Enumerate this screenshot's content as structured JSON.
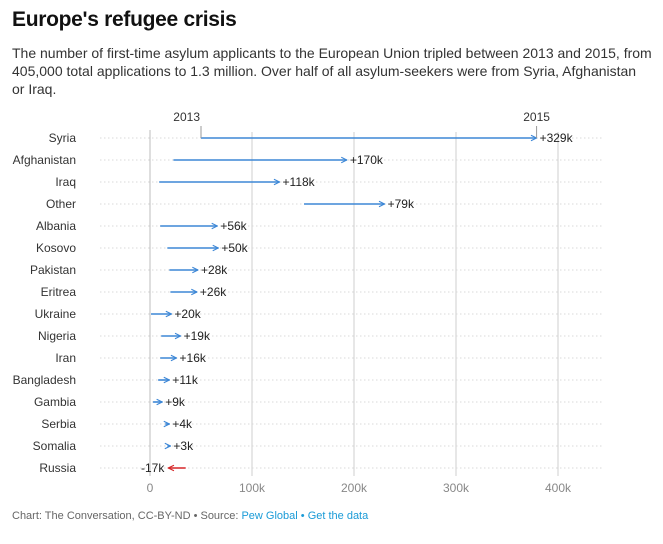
{
  "title": "Europe's refugee crisis",
  "subtitle": "The number of first-time asylum applicants to the European Union tripled between 2013 and 2015, from 405,000 total applications to 1.3 million. Over half of all asylum-seekers were from Syria, Afghanistan or Iraq.",
  "footer": {
    "credit": "Chart: The Conversation, CC-BY-ND • Source: ",
    "source_link": "Pew Global",
    "separator": " • ",
    "data_link": "Get the data"
  },
  "colors": {
    "increase": "#3d87d6",
    "decrease": "#d62728",
    "grid": "#cfcfcf",
    "axis_text": "#888888"
  },
  "chart_data": {
    "type": "arrow-range",
    "title": "Europe's refugee crisis",
    "start_label": "2013",
    "end_label": "2015",
    "xlim": [
      0,
      450000
    ],
    "xticks": [
      0,
      100000,
      200000,
      300000,
      400000
    ],
    "xtick_labels": [
      "0",
      "100k",
      "200k",
      "300k",
      "400k"
    ],
    "series": [
      {
        "country": "Syria",
        "v2013": 50000,
        "v2015": 379000,
        "label": "+329k"
      },
      {
        "country": "Afghanistan",
        "v2013": 23000,
        "v2015": 193000,
        "label": "+170k"
      },
      {
        "country": "Iraq",
        "v2013": 9000,
        "v2015": 127000,
        "label": "+118k"
      },
      {
        "country": "Other",
        "v2013": 151000,
        "v2015": 230000,
        "label": "+79k"
      },
      {
        "country": "Albania",
        "v2013": 10000,
        "v2015": 66000,
        "label": "+56k"
      },
      {
        "country": "Kosovo",
        "v2013": 17000,
        "v2015": 67000,
        "label": "+50k"
      },
      {
        "country": "Pakistan",
        "v2013": 19000,
        "v2015": 47000,
        "label": "+28k"
      },
      {
        "country": "Eritrea",
        "v2013": 20000,
        "v2015": 46000,
        "label": "+26k"
      },
      {
        "country": "Ukraine",
        "v2013": 1000,
        "v2015": 21000,
        "label": "+20k"
      },
      {
        "country": "Nigeria",
        "v2013": 11000,
        "v2015": 30000,
        "label": "+19k"
      },
      {
        "country": "Iran",
        "v2013": 10000,
        "v2015": 26000,
        "label": "+16k"
      },
      {
        "country": "Bangladesh",
        "v2013": 8000,
        "v2015": 19000,
        "label": "+11k"
      },
      {
        "country": "Gambia",
        "v2013": 3000,
        "v2015": 12000,
        "label": "+9k"
      },
      {
        "country": "Serbia",
        "v2013": 15000,
        "v2015": 19000,
        "label": "+4k"
      },
      {
        "country": "Somalia",
        "v2013": 17000,
        "v2015": 20000,
        "label": "+3k"
      },
      {
        "country": "Russia",
        "v2013": 35000,
        "v2015": 18000,
        "label": "-17k"
      }
    ]
  }
}
